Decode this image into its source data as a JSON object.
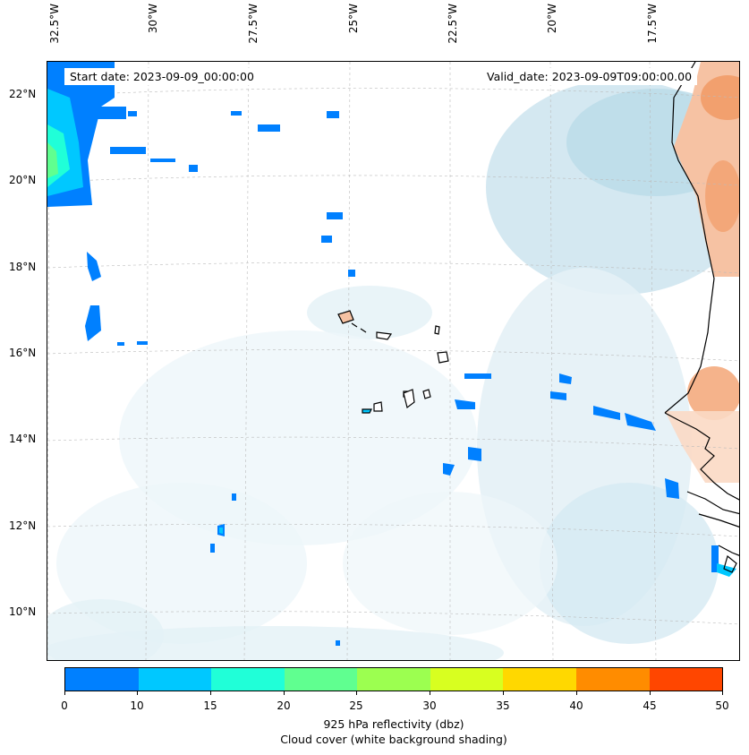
{
  "map": {
    "start_date": "Start date: 2023-09-09_00:00:00",
    "valid_date": "Valid_date: 2023-09-09T09:00:00.00",
    "lon_labels": [
      "32.5°W",
      "30°W",
      "27.5°W",
      "25°W",
      "22.5°W",
      "20°W",
      "17.5°W"
    ],
    "lat_labels": [
      "22°N",
      "20°N",
      "18°N",
      "16°N",
      "14°N",
      "12°N",
      "10°N"
    ],
    "gridlines": true,
    "colors": {
      "cloud_light": "#e6f2f7",
      "cloud_mid": "#c4e0ec",
      "land_warm": "#f6c2a3",
      "land_hot": "#f2a06e",
      "coast": "#000000"
    }
  },
  "colorbar": {
    "ticks": [
      "0",
      "5",
      "10",
      "15",
      "20",
      "25",
      "30",
      "35",
      "40",
      "45",
      "50"
    ],
    "colors": [
      "#0080ff",
      "#00c8ff",
      "#20ffd8",
      "#60ff90",
      "#9cff50",
      "#d8ff20",
      "#ffd800",
      "#ff8c00",
      "#ff4600"
    ],
    "label": "925 hPa reflectivity (dbz)",
    "sublabel": "Cloud cover (white background shading)"
  }
}
